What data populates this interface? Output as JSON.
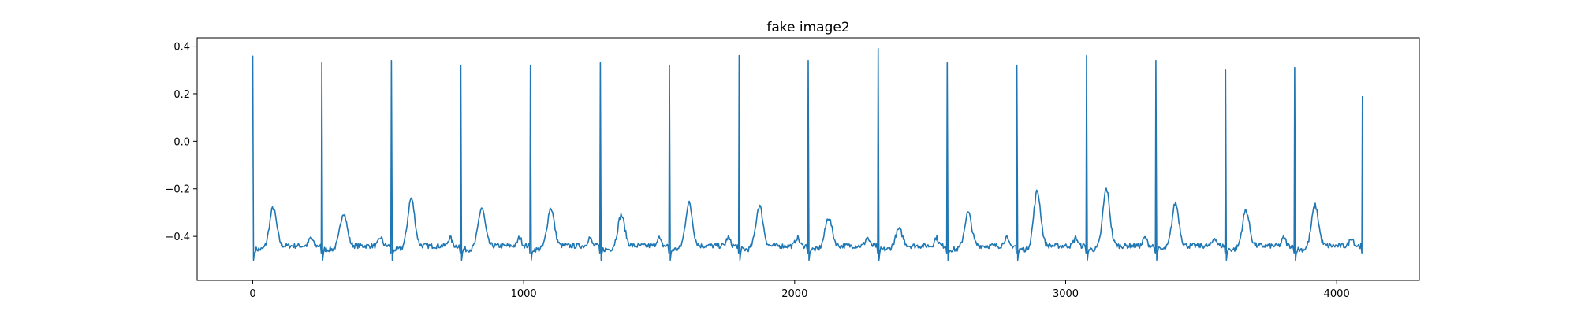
{
  "chart_data": {
    "type": "line",
    "title": "fake image2",
    "xlabel": "",
    "ylabel": "",
    "xlim": [
      -205,
      4305
    ],
    "ylim": [
      -0.585,
      0.435
    ],
    "x_ticks": [
      0,
      1000,
      2000,
      3000,
      4000
    ],
    "x_tick_labels": [
      "0",
      "1000",
      "2000",
      "3000",
      "4000"
    ],
    "y_ticks": [
      -0.4,
      -0.2,
      0.0,
      0.2,
      0.4
    ],
    "y_tick_labels": [
      "−0.4",
      "−0.2",
      "0.0",
      "0.2",
      "0.4"
    ],
    "grid": false,
    "legend": "none",
    "series_color": "#1f77b4",
    "series": [
      {
        "beats": [
          {
            "r_x": 0,
            "r_y": 0.36,
            "t_x": 75,
            "t_y": -0.28
          },
          {
            "r_x": 255,
            "r_y": 0.33,
            "t_x": 335,
            "t_y": -0.3
          },
          {
            "r_x": 512,
            "r_y": 0.34,
            "t_x": 585,
            "t_y": -0.24
          },
          {
            "r_x": 768,
            "r_y": 0.32,
            "t_x": 845,
            "t_y": -0.28
          },
          {
            "r_x": 1025,
            "r_y": 0.32,
            "t_x": 1100,
            "t_y": -0.28
          },
          {
            "r_x": 1283,
            "r_y": 0.33,
            "t_x": 1360,
            "t_y": -0.31
          },
          {
            "r_x": 1538,
            "r_y": 0.32,
            "t_x": 1610,
            "t_y": -0.26
          },
          {
            "r_x": 1795,
            "r_y": 0.36,
            "t_x": 1870,
            "t_y": -0.27
          },
          {
            "r_x": 2050,
            "r_y": 0.34,
            "t_x": 2125,
            "t_y": -0.32
          },
          {
            "r_x": 2308,
            "r_y": 0.39,
            "t_x": 2385,
            "t_y": -0.37
          },
          {
            "r_x": 2563,
            "r_y": 0.33,
            "t_x": 2640,
            "t_y": -0.3
          },
          {
            "r_x": 2820,
            "r_y": 0.32,
            "t_x": 2895,
            "t_y": -0.21
          },
          {
            "r_x": 3077,
            "r_y": 0.36,
            "t_x": 3150,
            "t_y": -0.2
          },
          {
            "r_x": 3333,
            "r_y": 0.34,
            "t_x": 3405,
            "t_y": -0.26
          },
          {
            "r_x": 3590,
            "r_y": 0.3,
            "t_x": 3665,
            "t_y": -0.29
          },
          {
            "r_x": 3845,
            "r_y": 0.31,
            "t_x": 3920,
            "t_y": -0.27
          },
          {
            "r_x": 4095,
            "r_y": 0.19
          }
        ],
        "baseline": -0.44,
        "s_wave_min": -0.49
      }
    ]
  }
}
